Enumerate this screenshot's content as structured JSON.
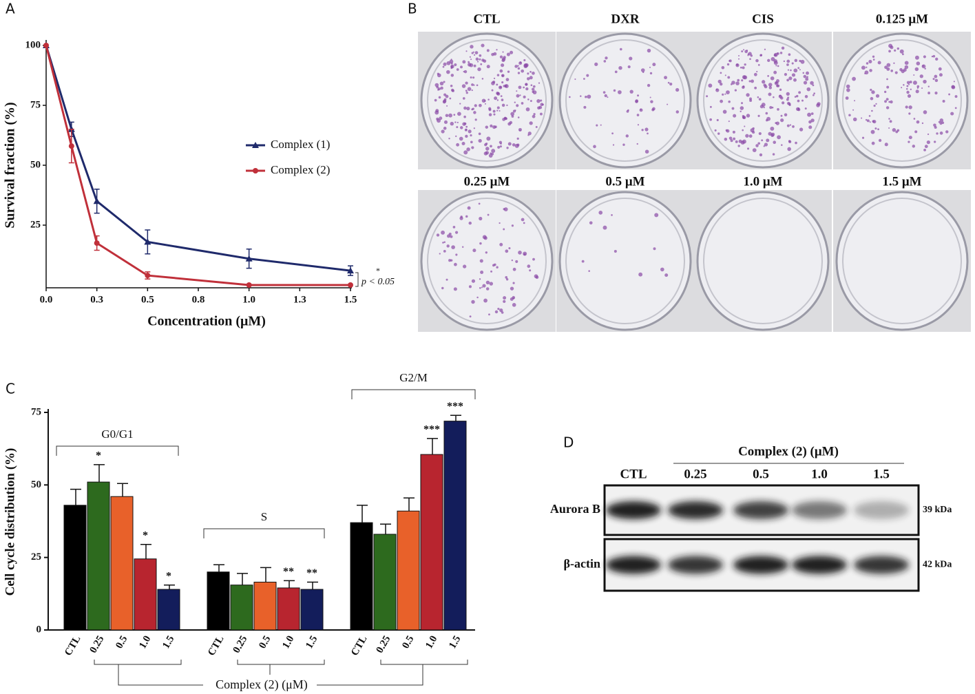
{
  "panel_labels": [
    "A",
    "B",
    "C",
    "D"
  ],
  "chart_data": [
    {
      "type": "line",
      "xlabel": "Concentration (μM)",
      "ylabel": "Survival fraction (%)",
      "x": [
        0,
        0.125,
        0.25,
        0.5,
        1.0,
        1.5
      ],
      "series": [
        {
          "name": "Complex (1)",
          "color": "#1f2a6b",
          "marker": "triangle",
          "values": [
            100,
            65,
            35,
            18,
            11,
            6
          ],
          "errors": [
            0,
            3,
            5,
            5,
            4,
            2
          ]
        },
        {
          "name": "Complex (2)",
          "color": "#c0303a",
          "marker": "circle",
          "values": [
            100,
            58,
            17.5,
            4,
            0,
            0
          ],
          "errors": [
            0,
            7,
            3,
            1.5,
            0,
            0
          ]
        }
      ],
      "xlim": [
        0,
        1.5
      ],
      "ylim": [
        0,
        100
      ],
      "xticks": [
        {
          "value": 0,
          "label": "0.0"
        },
        {
          "value": 0.25,
          "label": "0.3"
        },
        0.5,
        {
          "value": 0.75,
          "label": "0.8"
        },
        {
          "value": 1.0,
          "label": "1.0"
        },
        {
          "value": 1.25,
          "label": "1.3"
        },
        1.5
      ],
      "yticks": [
        25,
        50,
        75,
        100
      ],
      "legend": "center-right",
      "annotations": [
        "*",
        "p < 0.05"
      ]
    },
    {
      "type": "bar",
      "ylabel": "Cell cycle distribution (%)",
      "xlabel": "Complex (2) (μM)",
      "categories": [
        "G0/G1",
        "S",
        "G2/M"
      ],
      "series": [
        {
          "name": "CTL",
          "color": "#000000",
          "values": [
            43,
            20,
            37
          ],
          "errors": [
            5.5,
            2.5,
            6
          ],
          "significance": [
            null,
            null,
            null
          ]
        },
        {
          "name": "0.25",
          "color": "#2d6a1e",
          "values": [
            51,
            15.5,
            33
          ],
          "errors": [
            6,
            4,
            3.5
          ],
          "significance": [
            "*",
            null,
            null
          ]
        },
        {
          "name": "0.5",
          "color": "#e8612a",
          "values": [
            46,
            16.5,
            41
          ],
          "errors": [
            4.5,
            5,
            4.5
          ],
          "significance": [
            null,
            null,
            null
          ]
        },
        {
          "name": "1.0",
          "color": "#b8252f",
          "values": [
            24.5,
            14.5,
            60.5
          ],
          "errors": [
            5,
            2.5,
            5.5
          ],
          "significance": [
            "*",
            "**",
            "***"
          ]
        },
        {
          "name": "1.5",
          "color": "#131d5b",
          "values": [
            14,
            14,
            72
          ],
          "errors": [
            1.5,
            2.5,
            2
          ],
          "significance": [
            "*",
            "**",
            "***"
          ]
        }
      ],
      "ylim": [
        0,
        75
      ],
      "yticks": [
        0,
        25,
        50,
        75
      ]
    }
  ],
  "colony_panel": {
    "labels": [
      "CTL",
      "DXR",
      "CIS",
      "0.125 μM",
      "0.25 μM",
      "0.5 μM",
      "1.0 μM",
      "1.5 μM"
    ]
  },
  "blot_panel": {
    "header": "Complex (2) (μM)",
    "lanes": [
      "CTL",
      "0.25",
      "0.5",
      "1.0",
      "1.5"
    ],
    "rows": [
      {
        "name": "Aurora B",
        "size": "39 kDa"
      },
      {
        "name": "β-actin",
        "size": "42 kDa"
      }
    ]
  }
}
